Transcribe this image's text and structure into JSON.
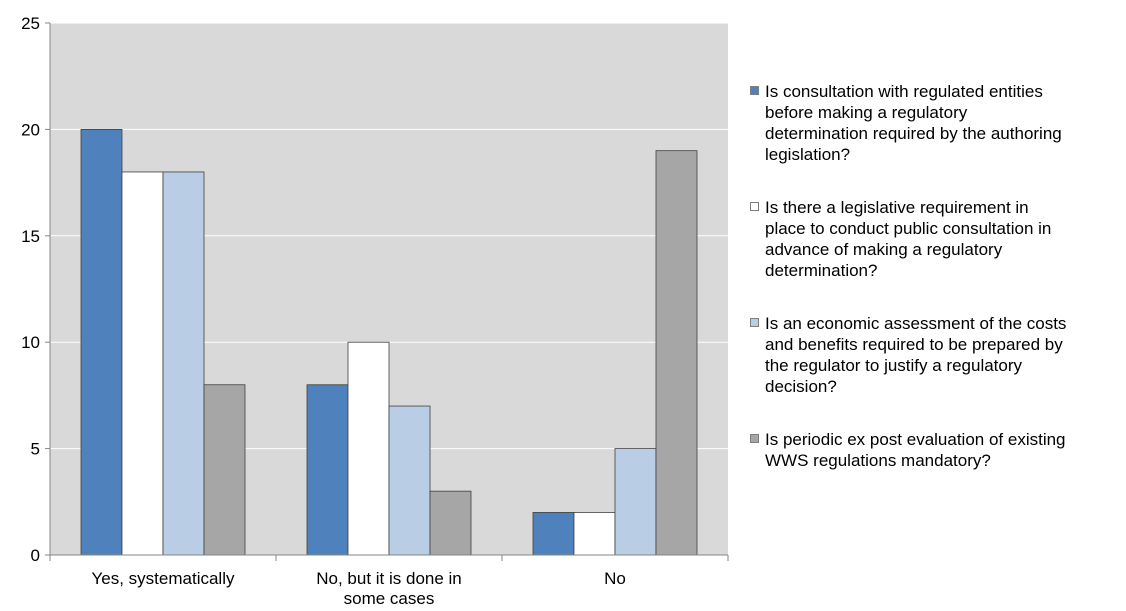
{
  "chart_data": {
    "type": "bar",
    "title": "",
    "xlabel": "",
    "ylabel": "",
    "ylim": [
      0,
      25
    ],
    "yticks": [
      0,
      5,
      10,
      15,
      20,
      25
    ],
    "grid": true,
    "legend_position": "right",
    "categories": [
      "Yes, systematically",
      "No, but it is done in some cases",
      "No"
    ],
    "category_lines": [
      [
        "Yes, systematically"
      ],
      [
        "No, but it is done in",
        "some cases"
      ],
      [
        "No"
      ]
    ],
    "series": [
      {
        "name": "Is consultation with regulated entities before making a regulatory determination required by the authoring legislation?",
        "name_lines": [
          "Is consultation with regulated entities",
          "before making a regulatory",
          "determination required by the authoring",
          "legislation?"
        ],
        "color": "#4f81bd",
        "values": [
          20,
          8,
          2
        ]
      },
      {
        "name": "Is there a legislative requirement in place to conduct public consultation in advance of making a regulatory determination?",
        "name_lines": [
          "Is there a legislative requirement in",
          "place to conduct public consultation in",
          "advance of making a regulatory",
          "determination?"
        ],
        "color": "#ffffff",
        "values": [
          18,
          10,
          2
        ]
      },
      {
        "name": "Is an economic assessment of the costs and benefits required to be prepared by the regulator to justify a regulatory decision?",
        "name_lines": [
          "Is an economic assessment of the costs",
          "and benefits required to be prepared by",
          "the regulator to justify a regulatory",
          "decision?"
        ],
        "color": "#b9cde5",
        "values": [
          18,
          7,
          5
        ]
      },
      {
        "name": "Is periodic ex post evaluation of existing WWS regulations mandatory?",
        "name_lines": [
          "Is periodic ex post evaluation of existing",
          "WWS regulations mandatory?"
        ],
        "color": "#a6a6a6",
        "values": [
          8,
          3,
          19
        ]
      }
    ],
    "colors": {
      "plot_background": "#d9d9d9",
      "gridline": "#ffffff",
      "axis": "#868686",
      "bar_border": "#404040"
    }
  }
}
